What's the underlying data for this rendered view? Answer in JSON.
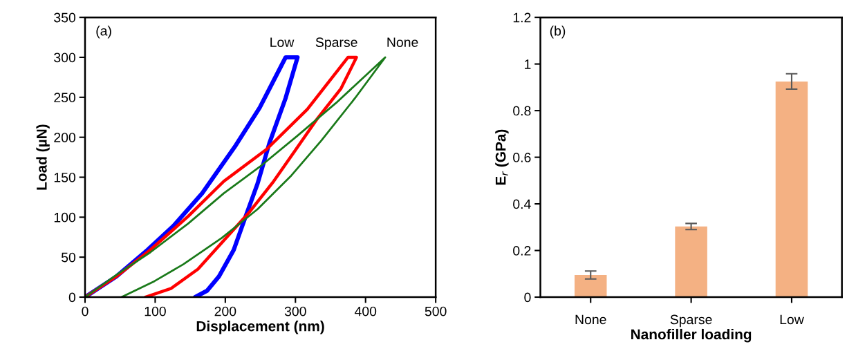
{
  "chart_data": [
    {
      "type": "line",
      "xlabel": "Displacement (nm)",
      "ylabel": "Load (µN)",
      "xlim": [
        0,
        500
      ],
      "ylim": [
        0,
        350
      ],
      "xticks": [
        0,
        100,
        200,
        300,
        400,
        500
      ],
      "yticks": [
        0,
        50,
        100,
        150,
        200,
        250,
        300,
        350
      ],
      "legend": false,
      "grid": false,
      "marker": "none",
      "line_style": "solid",
      "annotations": [
        "(a)"
      ],
      "series": [
        {
          "name": "Low",
          "color": "#0000ff",
          "x": [
            0,
            45,
            89,
            126,
            167,
            215,
            249,
            286,
            303,
            286,
            263,
            246,
            229,
            212,
            191,
            174,
            157
          ],
          "values": [
            0,
            26,
            59,
            89,
            130,
            190,
            237,
            300,
            300,
            249,
            193,
            142,
            101,
            59,
            26,
            8,
            0
          ]
        },
        {
          "name": "Sparse",
          "color": "#ff0000",
          "x": [
            0,
            45,
            93,
            147,
            198,
            259,
            317,
            375,
            387,
            365,
            331,
            300,
            269,
            235,
            201,
            161,
            123,
            86
          ],
          "values": [
            0,
            26,
            59,
            101,
            145,
            185,
            235,
            300,
            300,
            261,
            223,
            184,
            145,
            107,
            74,
            35,
            11,
            0
          ]
        },
        {
          "name": "None",
          "color": "#1a7a1a",
          "x": [
            0,
            45,
            93,
            147,
            198,
            249,
            303,
            358,
            428,
            385,
            337,
            293,
            246,
            195,
            140,
            99,
            52
          ],
          "values": [
            0,
            28,
            56,
            92,
            130,
            163,
            202,
            243,
            300,
            249,
            196,
            151,
            110,
            74,
            41,
            20,
            0
          ]
        }
      ]
    },
    {
      "type": "bar",
      "xlabel": "Nanofiller loading",
      "ylabel": "E$_{r}$ (GPa)",
      "categories": [
        "None",
        "Sparse",
        "Low"
      ],
      "values": [
        0.095,
        0.303,
        0.925
      ],
      "errors": [
        0.017,
        0.013,
        0.033
      ],
      "color": "#f4b183",
      "ylim": [
        0,
        1.2
      ],
      "yticks": [
        0,
        0.2,
        0.4,
        0.6,
        0.8,
        1,
        1.2
      ],
      "grid": false,
      "legend": false,
      "annotations": [
        "(b)"
      ]
    }
  ]
}
